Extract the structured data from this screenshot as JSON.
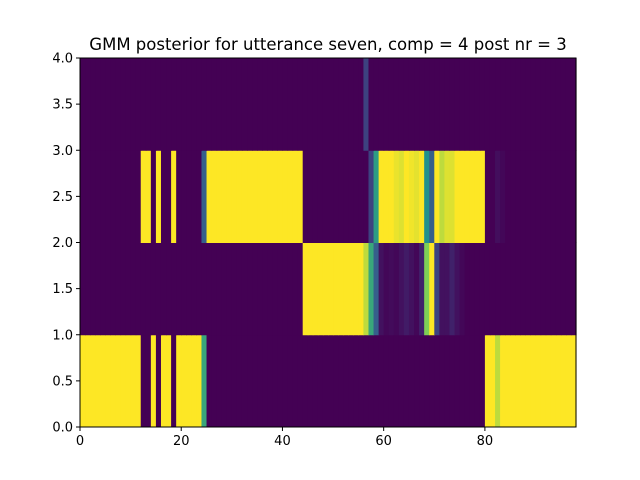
{
  "chart_data": {
    "type": "heatmap",
    "title": "GMM posterior for utterance seven, comp = 4 post nr = 3",
    "xlabel": "",
    "ylabel": "",
    "xlim": [
      0,
      98
    ],
    "ylim": [
      0,
      4
    ],
    "x_ticks": [
      0,
      20,
      40,
      60,
      80
    ],
    "x_tick_labels": [
      "0",
      "20",
      "40",
      "60",
      "80"
    ],
    "y_ticks": [
      0,
      0.5,
      1,
      1.5,
      2,
      2.5,
      3,
      3.5,
      4
    ],
    "y_tick_labels": [
      "0.0",
      "0.5",
      "1.0",
      "1.5",
      "2.0",
      "2.5",
      "3.0",
      "3.5",
      "4.0"
    ],
    "grid": false,
    "colormap": "viridis",
    "value_range": [
      0,
      1
    ],
    "rows": [
      {
        "component": 0,
        "y_range": [
          0,
          1
        ],
        "values": [
          1,
          1,
          1,
          1,
          1,
          1,
          1,
          1,
          1,
          1,
          1,
          1,
          0,
          0,
          1,
          0,
          1,
          1,
          0,
          1,
          1,
          1,
          1,
          1,
          0.6,
          0,
          0,
          0,
          0,
          0,
          0,
          0,
          0,
          0,
          0,
          0,
          0,
          0,
          0,
          0,
          0,
          0,
          0,
          0,
          0,
          0,
          0,
          0,
          0,
          0,
          0,
          0,
          0,
          0,
          0,
          0,
          0,
          0,
          0,
          0,
          0,
          0,
          0,
          0,
          0,
          0,
          0,
          0,
          0,
          0,
          0,
          0,
          0,
          0,
          0,
          0,
          0,
          0,
          0,
          0,
          1,
          1,
          0.9,
          1,
          1,
          1,
          1,
          1,
          1,
          1,
          1,
          1,
          1,
          1,
          1,
          1,
          1,
          1
        ]
      },
      {
        "component": 1,
        "y_range": [
          1,
          2
        ],
        "values": [
          0,
          0,
          0,
          0,
          0,
          0,
          0,
          0,
          0,
          0,
          0,
          0,
          0,
          0,
          0,
          0,
          0,
          0,
          0,
          0,
          0,
          0,
          0,
          0,
          0,
          0,
          0,
          0,
          0,
          0,
          0,
          0,
          0,
          0,
          0,
          0,
          0,
          0,
          0,
          0,
          0,
          0,
          0,
          0,
          1,
          1,
          1,
          1,
          1,
          1,
          1,
          1,
          1,
          1,
          1,
          1,
          0.9,
          0.6,
          0.3,
          0.05,
          0.02,
          0.03,
          0.02,
          0.05,
          0.08,
          0.05,
          0.02,
          0.1,
          0.8,
          1,
          0.2,
          0.05,
          0.05,
          0.1,
          0.05,
          0.02,
          0,
          0,
          0,
          0,
          0,
          0,
          0,
          0,
          0,
          0,
          0,
          0,
          0,
          0,
          0,
          0,
          0,
          0,
          0,
          0,
          0,
          0
        ]
      },
      {
        "component": 2,
        "y_range": [
          2,
          3
        ],
        "values": [
          0,
          0,
          0,
          0,
          0,
          0,
          0,
          0,
          0,
          0,
          0,
          0,
          1,
          1,
          0,
          1,
          0,
          0,
          1,
          0,
          0,
          0,
          0,
          0,
          0.3,
          1,
          1,
          1,
          1,
          1,
          1,
          1,
          1,
          1,
          1,
          1,
          1,
          1,
          1,
          1,
          1,
          1,
          1,
          1,
          0,
          0,
          0,
          0,
          0,
          0,
          0,
          0,
          0,
          0,
          0,
          0,
          0,
          0.2,
          0.55,
          1,
          1,
          1,
          0.97,
          0.95,
          1,
          0.98,
          0.96,
          1,
          0.5,
          0.3,
          1,
          0.9,
          0.95,
          0.95,
          1,
          1,
          1,
          1,
          1,
          1,
          0,
          0,
          0.04,
          0.02,
          0,
          0,
          0,
          0,
          0,
          0,
          0,
          0,
          0,
          0,
          0,
          0,
          0,
          0
        ]
      },
      {
        "component": 3,
        "y_range": [
          3,
          4
        ],
        "values": [
          0,
          0,
          0,
          0,
          0,
          0,
          0,
          0,
          0,
          0,
          0,
          0,
          0,
          0,
          0,
          0,
          0,
          0,
          0,
          0,
          0,
          0,
          0,
          0,
          0,
          0,
          0,
          0,
          0,
          0,
          0,
          0,
          0,
          0,
          0,
          0,
          0,
          0,
          0,
          0,
          0,
          0,
          0,
          0,
          0,
          0,
          0,
          0,
          0,
          0,
          0,
          0,
          0,
          0,
          0,
          0,
          0.2,
          0,
          0,
          0,
          0,
          0,
          0,
          0,
          0,
          0,
          0,
          0,
          0,
          0,
          0,
          0,
          0,
          0,
          0,
          0,
          0,
          0,
          0,
          0,
          0,
          0,
          0,
          0,
          0,
          0,
          0,
          0,
          0,
          0,
          0,
          0,
          0,
          0,
          0,
          0,
          0,
          0
        ]
      }
    ]
  }
}
